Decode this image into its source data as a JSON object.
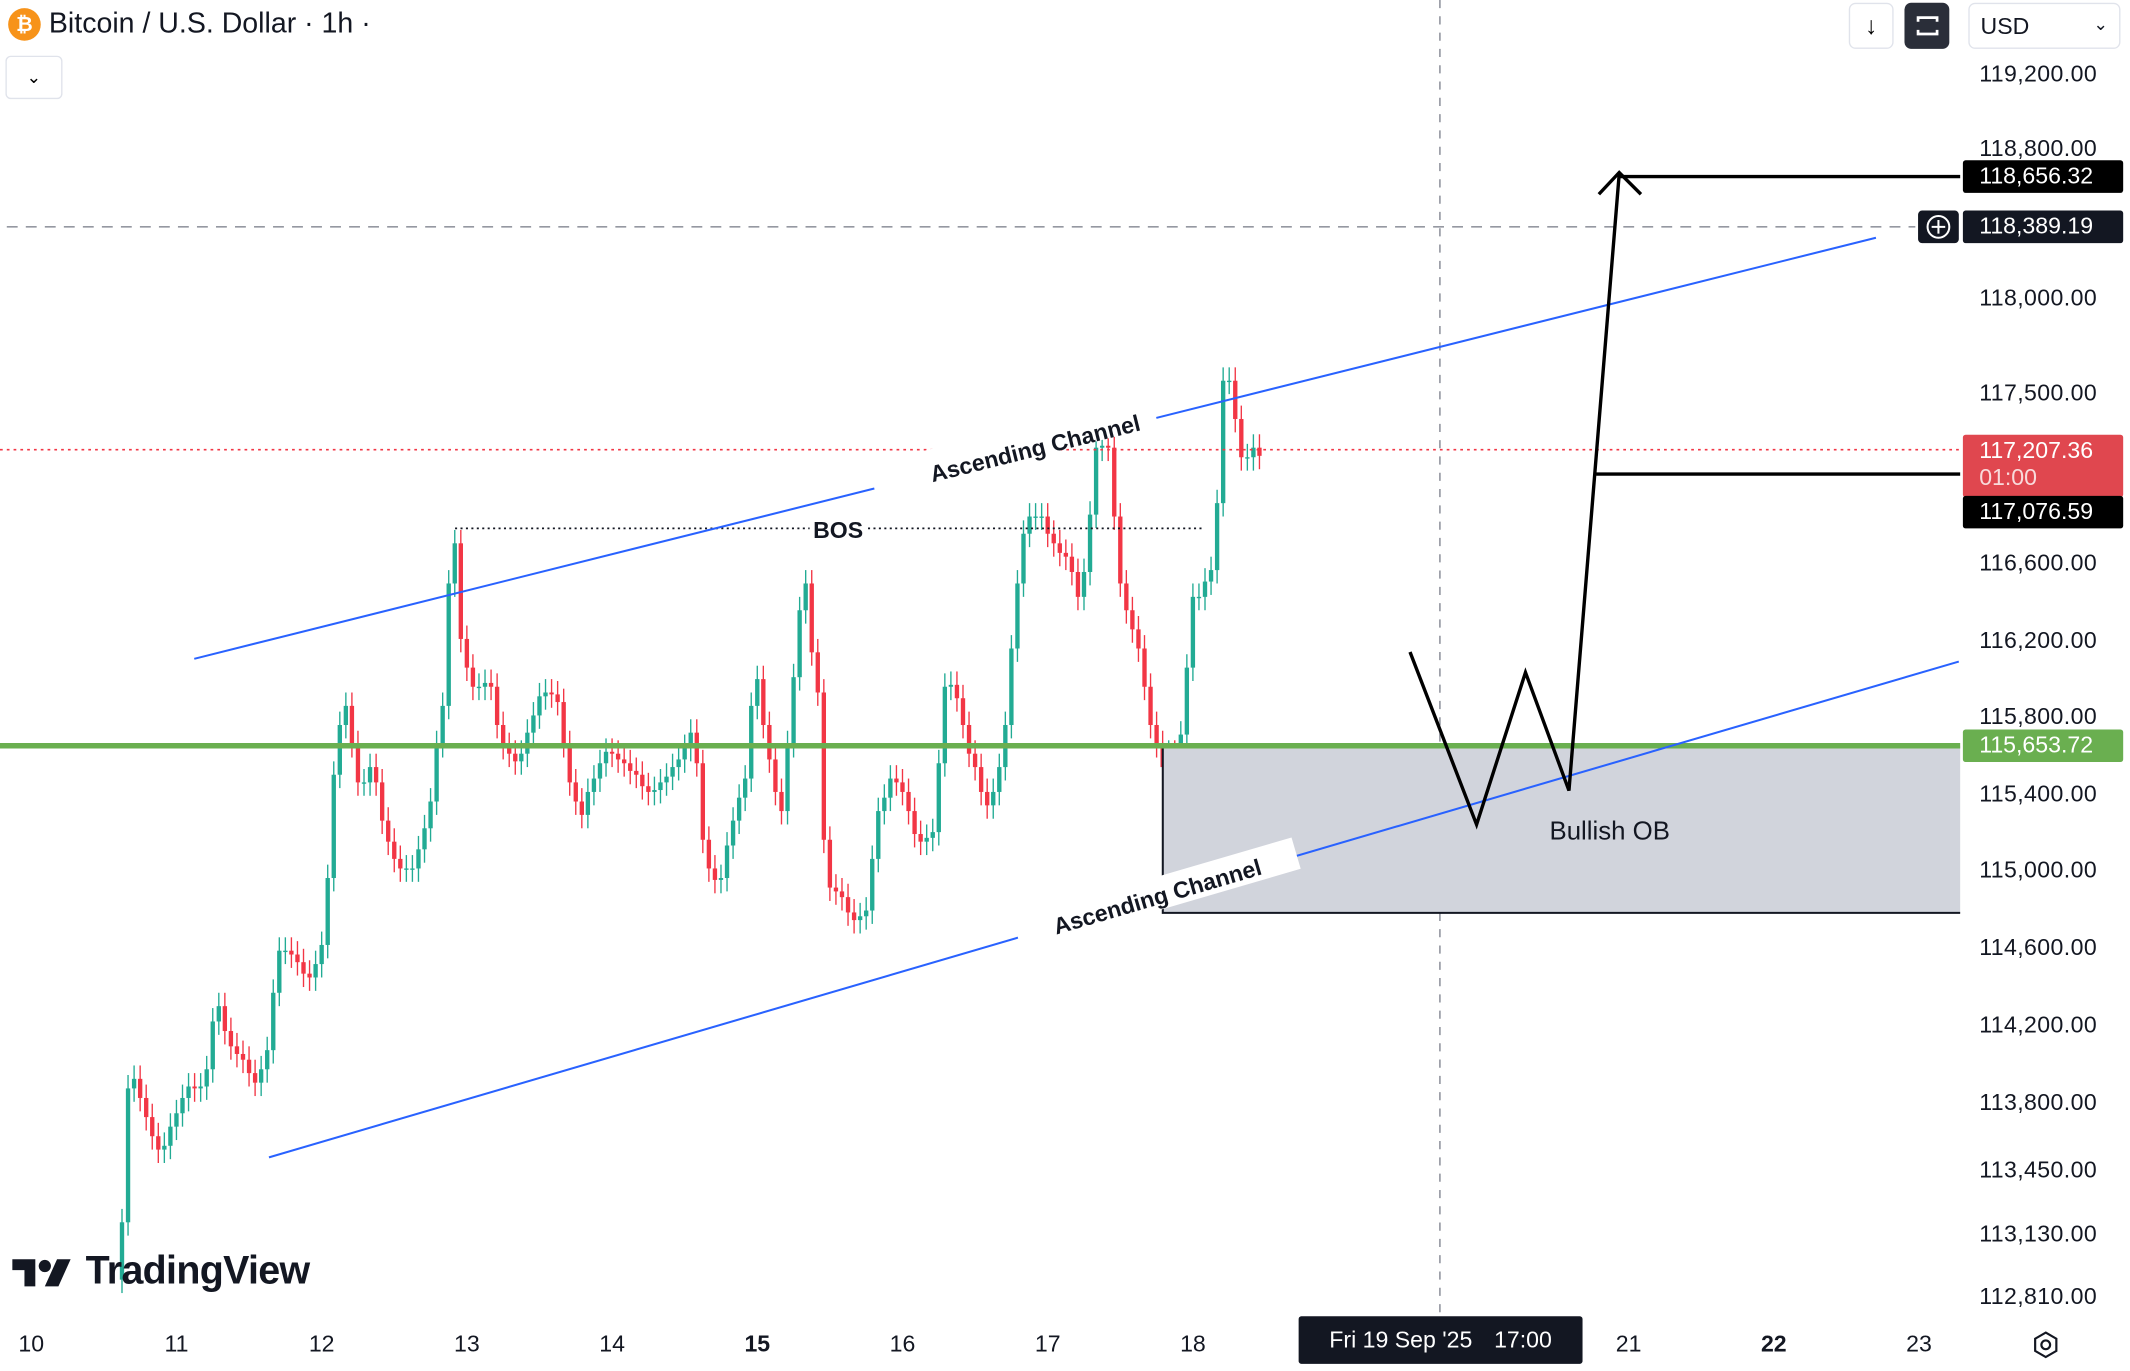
{
  "header": {
    "title": "Bitcoin / U.S. Dollar · 1h ·",
    "symbol_icon": "bitcoin-icon",
    "collapse_icon": "chevron-down-icon"
  },
  "toolbar": {
    "scroll_icon": "arrow-down-icon",
    "fullscreen_icon": "fullscreen-icon",
    "currency": "USD"
  },
  "colors": {
    "up": "#22ab94",
    "down": "#f23645",
    "channel": "#2962ff",
    "support": "#6aaf50",
    "current": "#f23645",
    "ob_fill": "#d1d4dc"
  },
  "y_axis": {
    "ticks": [
      "119,200.00",
      "118,800.00",
      "118,000.00",
      "117,500.00",
      "116,600.00",
      "116,200.00",
      "115,800.00",
      "115,400.00",
      "115,000.00",
      "114,600.00",
      "114,200.00",
      "113,800.00",
      "113,450.00",
      "113,130.00",
      "112,810.00"
    ],
    "labels": {
      "target": "118,656.32",
      "crosshair": "118,389.19",
      "current_price": "117,207.36",
      "countdown": "01:00",
      "level": "117,076.59",
      "support": "115,653.72"
    }
  },
  "x_axis": {
    "ticks": [
      {
        "label": "10",
        "bold": false
      },
      {
        "label": "11",
        "bold": false
      },
      {
        "label": "12",
        "bold": false
      },
      {
        "label": "13",
        "bold": false
      },
      {
        "label": "14",
        "bold": false
      },
      {
        "label": "15",
        "bold": true
      },
      {
        "label": "16",
        "bold": false
      },
      {
        "label": "17",
        "bold": false
      },
      {
        "label": "18",
        "bold": false
      },
      {
        "label": "21",
        "bold": false
      },
      {
        "label": "22",
        "bold": true
      },
      {
        "label": "23",
        "bold": false
      }
    ],
    "crosshair_date": "Fri 19 Sep '25",
    "crosshair_time": "17:00"
  },
  "annotations": {
    "upper_channel": "Ascending Channel",
    "lower_channel": "Ascending Channel",
    "bos": "BOS",
    "order_block": "Bullish OB"
  },
  "logo": "TradingView",
  "chart_data": {
    "type": "candlestick",
    "interval": "1h",
    "start": "2025-09-10 15:00",
    "closes": [
      113200,
      113900,
      113950,
      113850,
      113750,
      113650,
      113580,
      113600,
      113700,
      113770,
      113850,
      113910,
      113900,
      113910,
      114000,
      114250,
      114330,
      114200,
      114120,
      114080,
      114050,
      113980,
      113930,
      114000,
      114100,
      114400,
      114620,
      114620,
      114600,
      114560,
      114500,
      114480,
      114550,
      114650,
      115000,
      115540,
      115800,
      115900,
      115700,
      115500,
      115500,
      115580,
      115500,
      115300,
      115190,
      115100,
      115050,
      115050,
      115050,
      115150,
      115260,
      115400,
      115700,
      115900,
      116540,
      116750,
      116250,
      116100,
      116000,
      116000,
      116020,
      116000,
      115800,
      115690,
      115650,
      115610,
      115650,
      115760,
      115850,
      115950,
      115970,
      115960,
      115920,
      115700,
      115500,
      115400,
      115330,
      115450,
      115520,
      115600,
      115660,
      115650,
      115620,
      115600,
      115560,
      115540,
      115480,
      115450,
      115460,
      115500,
      115530,
      115580,
      115620,
      115680,
      115760,
      115600,
      115200,
      115050,
      114990,
      115000,
      115170,
      115300,
      115420,
      115520,
      115900,
      116040,
      115800,
      115620,
      115450,
      115350,
      115700,
      116050,
      116400,
      116540,
      116180,
      115970,
      115200,
      114950,
      114930,
      114900,
      114820,
      114780,
      114800,
      114830,
      115100,
      115350,
      115420,
      115520,
      115500,
      115450,
      115350,
      115230,
      115190,
      115210,
      115240,
      115600,
      116000,
      116010,
      115940,
      115800,
      115650,
      115580,
      115450,
      115380,
      115450,
      115580,
      115800,
      116200,
      116540,
      116800,
      116890,
      116890,
      116890,
      116800,
      116750,
      116700,
      116680,
      116600,
      116470,
      116600,
      116900,
      117250,
      117260,
      117250,
      116890,
      116540,
      116400,
      116300,
      116200,
      116000,
      115800,
      115700,
      115580,
      115650,
      115400,
      115750,
      116100,
      116470,
      116470,
      116550,
      116610,
      116960,
      117600,
      117600,
      117400,
      117200,
      117200,
      117250,
      117207.36
    ],
    "levels": {
      "support": 115653.72,
      "target": 118656.32,
      "level": 117076.59,
      "current": 117207.36,
      "ob_low": 114720
    },
    "ylim": [
      112700,
      119400
    ]
  }
}
